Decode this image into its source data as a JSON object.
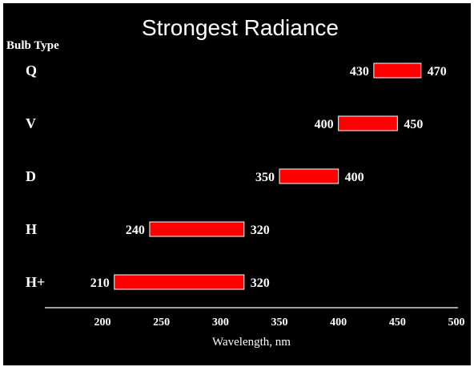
{
  "chart_data": {
    "type": "bar",
    "orientation": "horizontal-range",
    "title": "Strongest Radiance",
    "category_axis_label": "Bulb Type",
    "xlabel": "Wavelength, nm",
    "xlim": [
      150,
      500
    ],
    "x_ticks": [
      "200",
      "250",
      "300",
      "350",
      "400",
      "450",
      "500"
    ],
    "categories": [
      "Q",
      "V",
      "D",
      "H",
      "H+"
    ],
    "ranges": [
      {
        "start": 430,
        "end": 470,
        "start_label": "430",
        "end_label": "470"
      },
      {
        "start": 400,
        "end": 450,
        "start_label": "400",
        "end_label": "450"
      },
      {
        "start": 350,
        "end": 400,
        "start_label": "350",
        "end_label": "400"
      },
      {
        "start": 240,
        "end": 320,
        "start_label": "240",
        "end_label": "320"
      },
      {
        "start": 210,
        "end": 320,
        "start_label": "210",
        "end_label": "320"
      }
    ],
    "grid": false,
    "colors": {
      "background": "#000000",
      "bar": "#ff0000",
      "bar_border": "#ffffff",
      "text": "#ffffff"
    }
  }
}
